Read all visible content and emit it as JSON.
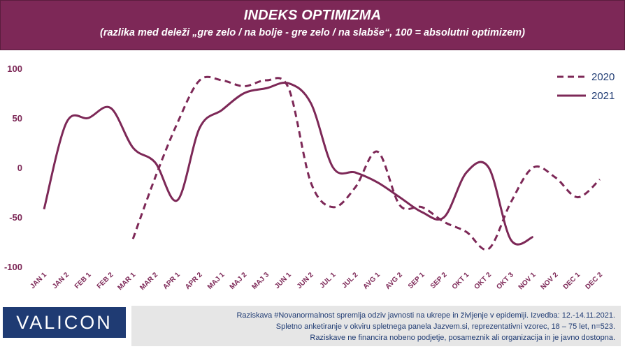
{
  "header": {
    "title": "INDEKS OPTIMIZMA",
    "subtitle": "(razlika med deleži „gre zelo / na bolje - gre zelo / na slabše“, 100 = absolutni optimizem)"
  },
  "chart_data": {
    "type": "line",
    "categories": [
      "JAN 1",
      "JAN 2",
      "FEB 1",
      "FEB 2",
      "MAR 1",
      "MAR 2",
      "APR 1",
      "APR 2",
      "MAJ 1",
      "MAJ 2",
      "MAJ 3",
      "JUN 1",
      "JUN 2",
      "JUL 1",
      "JUL 2",
      "AVG 1",
      "AVG 2",
      "SEP 1",
      "SEP 2",
      "OKT 1",
      "OKT 2",
      "OKT 3",
      "NOV 1",
      "NOV 2",
      "DEC 1",
      "DEC 2"
    ],
    "ylim": [
      -100,
      100
    ],
    "yticks": [
      "100",
      "50",
      "0",
      "-50",
      "-100"
    ],
    "ytick_values": [
      100,
      50,
      0,
      -50,
      -100
    ],
    "legend_position": "top-right",
    "grid": false,
    "series": [
      {
        "name": "2020",
        "style": "dashed",
        "color": "#7d2857",
        "values": [
          null,
          null,
          null,
          null,
          -72,
          -10,
          45,
          88,
          88,
          82,
          88,
          80,
          -15,
          -40,
          -20,
          16,
          -38,
          -40,
          -55,
          -65,
          -82,
          -35,
          0,
          -10,
          -30,
          -12
        ]
      },
      {
        "name": "2021",
        "style": "solid",
        "color": "#7d2857",
        "values": [
          -42,
          45,
          50,
          60,
          20,
          5,
          -33,
          40,
          58,
          75,
          80,
          85,
          65,
          0,
          -5,
          -15,
          -30,
          -45,
          -50,
          -5,
          0,
          -73,
          -70,
          null,
          null,
          null
        ]
      }
    ]
  },
  "footer": {
    "logo": "VALICON",
    "note_lines": [
      "Raziskava #Novanormalnost spremlja odziv javnosti na ukrepe in življenje v epidemiji. Izvedba: 12.-14.11.2021.",
      "Spletno anketiranje v okviru spletnega panela Jazvem.si, reprezentativni vzorec, 18 – 75 let, n=523.",
      "Raziskave ne financira nobeno podjetje, posameznik ali organizacija in je javno dostopna."
    ]
  }
}
